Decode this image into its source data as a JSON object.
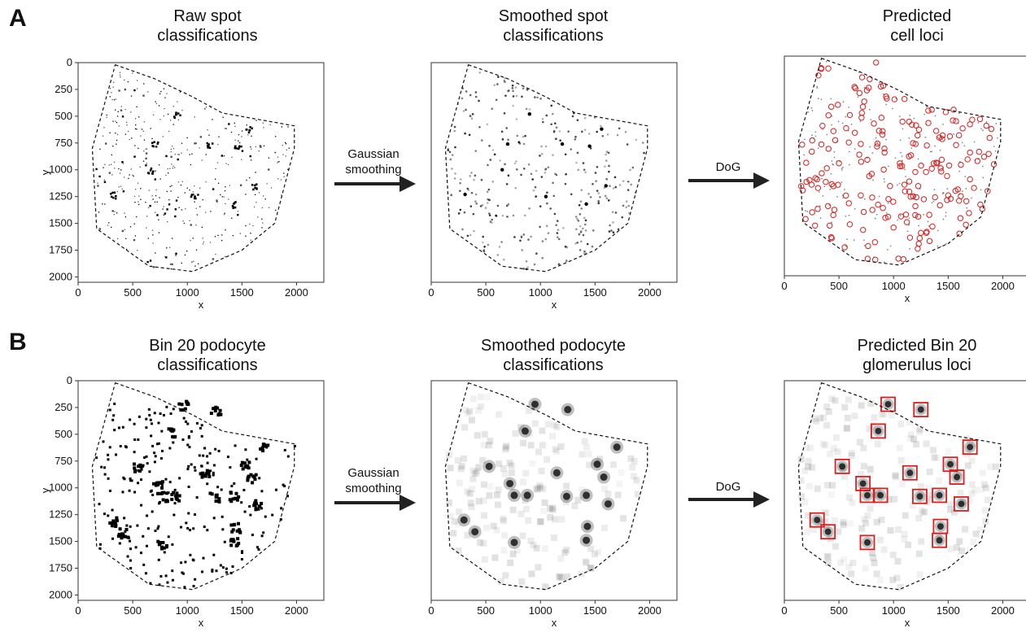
{
  "panels": [
    {
      "letter": "A"
    },
    {
      "letter": "B"
    }
  ],
  "row_a": {
    "titles": [
      "Raw spot\nclassifications",
      "Smoothed spot\nclassifications",
      "Predicted\ncell loci"
    ],
    "arrows": [
      "Gaussian\nsmoothing",
      "DoG"
    ]
  },
  "row_b": {
    "titles": [
      "Bin 20 podocyte\nclassifications",
      "Smoothed podocyte\nclassifications",
      "Predicted Bin 20\nglomerulus loci"
    ],
    "arrows": [
      "Gaussian\nsmoothing",
      "DoG"
    ]
  },
  "colors": {
    "marker": "#e11a1a",
    "spot": "#000000",
    "boundary": "#111111",
    "arrow": "#222222"
  },
  "chart_data": [
    {
      "type": "heatmap",
      "xlabel": "x",
      "ylabel": "y",
      "xlim": [
        0,
        2250
      ],
      "ylim": [
        2050,
        0
      ],
      "xticks": [
        0,
        500,
        1000,
        1500,
        2000
      ],
      "yticks": [
        0,
        250,
        500,
        750,
        1000,
        1250,
        1500,
        1750,
        2000
      ],
      "tissue_boundary": [
        [
          340,
          20
        ],
        [
          700,
          150
        ],
        [
          1050,
          320
        ],
        [
          1320,
          470
        ],
        [
          1980,
          590
        ],
        [
          1980,
          800
        ],
        [
          1800,
          1500
        ],
        [
          1500,
          1750
        ],
        [
          1050,
          1950
        ],
        [
          650,
          1900
        ],
        [
          650,
          1900
        ],
        [
          170,
          1550
        ],
        [
          130,
          800
        ],
        [
          340,
          20
        ]
      ],
      "clusters": [
        [
          700,
          760
        ],
        [
          1450,
          780
        ],
        [
          1200,
          760
        ],
        [
          310,
          1230
        ],
        [
          650,
          1000
        ],
        [
          1420,
          1320
        ],
        [
          900,
          480
        ],
        [
          1600,
          1150
        ],
        [
          1050,
          1250
        ],
        [
          1560,
          620
        ]
      ]
    }
  ],
  "loci_cells": [
    [
      840,
      60
    ],
    [
      1450,
      740
    ],
    [
      1220,
      740
    ],
    [
      700,
      820
    ],
    [
      500,
      1000
    ],
    [
      1350,
      1050
    ],
    [
      300,
      1150
    ],
    [
      1100,
      1200
    ],
    [
      1600,
      1350
    ],
    [
      950,
      1500
    ],
    [
      1300,
      1650
    ],
    [
      400,
      1400
    ],
    [
      1700,
      900
    ],
    [
      650,
      300
    ],
    [
      1100,
      400
    ],
    [
      1700,
      1150
    ],
    [
      800,
      1100
    ],
    [
      1500,
      1300
    ],
    [
      250,
      1200
    ],
    [
      900,
      700
    ],
    [
      600,
      550
    ],
    [
      1350,
      500
    ],
    [
      1000,
      1600
    ],
    [
      1200,
      1400
    ],
    [
      1550,
      500
    ],
    [
      450,
      700
    ],
    [
      1850,
      650
    ],
    [
      700,
      1300
    ],
    [
      1400,
      1000
    ],
    [
      1250,
      1650
    ]
  ],
  "glomeruli": [
    [
      950,
      220
    ],
    [
      1250,
      270
    ],
    [
      860,
      470
    ],
    [
      1700,
      620
    ],
    [
      530,
      800
    ],
    [
      1150,
      860
    ],
    [
      1520,
      780
    ],
    [
      1580,
      900
    ],
    [
      720,
      960
    ],
    [
      760,
      1070
    ],
    [
      880,
      1070
    ],
    [
      1240,
      1080
    ],
    [
      1420,
      1070
    ],
    [
      1620,
      1150
    ],
    [
      300,
      1300
    ],
    [
      400,
      1410
    ],
    [
      1430,
      1360
    ],
    [
      1420,
      1490
    ],
    [
      760,
      1510
    ]
  ]
}
